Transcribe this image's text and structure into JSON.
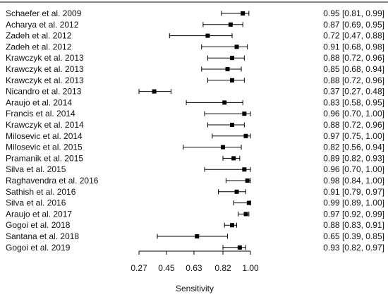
{
  "chart_data": {
    "type": "forest",
    "title": "",
    "xlabel": "Sensitivity",
    "ylabel": "",
    "x_ticks": [
      "0.27",
      "0.45",
      "0.63",
      "0.82",
      "1.00"
    ],
    "xlim": [
      0.27,
      1.0
    ],
    "grid": false,
    "studies": [
      {
        "label": "Schaefer et al. 2009",
        "estimate": 0.95,
        "lower": 0.81,
        "upper": 0.99,
        "ci_text": "0.95 [0.81, 0.99]"
      },
      {
        "label": "Acharya et al. 2012",
        "estimate": 0.87,
        "lower": 0.69,
        "upper": 0.95,
        "ci_text": "0.87 [0.69, 0.95]"
      },
      {
        "label": "Zadeh et al. 2012",
        "estimate": 0.72,
        "lower": 0.47,
        "upper": 0.88,
        "ci_text": "0.72 [0.47, 0.88]"
      },
      {
        "label": "Zadeh et al. 2012",
        "estimate": 0.91,
        "lower": 0.68,
        "upper": 0.98,
        "ci_text": "0.91 [0.68, 0.98]"
      },
      {
        "label": "Krawczyk et al. 2013",
        "estimate": 0.88,
        "lower": 0.72,
        "upper": 0.96,
        "ci_text": "0.88 [0.72, 0.96]"
      },
      {
        "label": "Krawczyk et al. 2013",
        "estimate": 0.85,
        "lower": 0.68,
        "upper": 0.94,
        "ci_text": "0.85 [0.68, 0.94]"
      },
      {
        "label": "Krawczyk et al. 2013",
        "estimate": 0.88,
        "lower": 0.72,
        "upper": 0.96,
        "ci_text": "0.88 [0.72, 0.96]"
      },
      {
        "label": "Nicandro et al. 2013",
        "estimate": 0.37,
        "lower": 0.27,
        "upper": 0.48,
        "ci_text": "0.37 [0.27, 0.48]"
      },
      {
        "label": "Araujo et al. 2014",
        "estimate": 0.83,
        "lower": 0.58,
        "upper": 0.95,
        "ci_text": "0.83 [0.58, 0.95]"
      },
      {
        "label": "Francis et al. 2014",
        "estimate": 0.96,
        "lower": 0.7,
        "upper": 1.0,
        "ci_text": "0.96 [0.70, 1.00]"
      },
      {
        "label": "Krawczyk et al. 2014",
        "estimate": 0.88,
        "lower": 0.72,
        "upper": 0.96,
        "ci_text": "0.88 [0.72, 0.96]"
      },
      {
        "label": "Milosevic et al. 2014",
        "estimate": 0.97,
        "lower": 0.75,
        "upper": 1.0,
        "ci_text": "0.97 [0.75, 1.00]"
      },
      {
        "label": " Milosevic et al. 2015",
        "estimate": 0.82,
        "lower": 0.56,
        "upper": 0.94,
        "ci_text": "0.82 [0.56, 0.94]"
      },
      {
        "label": "Pramanik et al. 2015",
        "estimate": 0.89,
        "lower": 0.82,
        "upper": 0.93,
        "ci_text": "0.89 [0.82, 0.93]"
      },
      {
        "label": "Silva et al. 2015",
        "estimate": 0.96,
        "lower": 0.7,
        "upper": 1.0,
        "ci_text": "0.96 [0.70, 1.00]"
      },
      {
        "label": "Raghavendra et al. 2016",
        "estimate": 0.98,
        "lower": 0.84,
        "upper": 1.0,
        "ci_text": "0.98 [0.84, 1.00]"
      },
      {
        "label": " Sathish et al. 2016",
        "estimate": 0.91,
        "lower": 0.79,
        "upper": 0.97,
        "ci_text": "0.91 [0.79, 0.97]"
      },
      {
        "label": "Silva et al. 2016",
        "estimate": 0.99,
        "lower": 0.89,
        "upper": 1.0,
        "ci_text": "0.99 [0.89, 1.00]"
      },
      {
        "label": "Araujo et al. 2017",
        "estimate": 0.97,
        "lower": 0.92,
        "upper": 0.99,
        "ci_text": "0.97 [0.92, 0.99]"
      },
      {
        "label": "Gogoi et al. 2018",
        "estimate": 0.88,
        "lower": 0.83,
        "upper": 0.91,
        "ci_text": "0.88 [0.83, 0.91]"
      },
      {
        "label": "Santana et al. 2018",
        "estimate": 0.65,
        "lower": 0.39,
        "upper": 0.85,
        "ci_text": "0.65 [0.39, 0.85]"
      },
      {
        "label": "Gogoi et al. 2019",
        "estimate": 0.93,
        "lower": 0.82,
        "upper": 0.97,
        "ci_text": "0.93 [0.82, 0.97]"
      }
    ]
  }
}
